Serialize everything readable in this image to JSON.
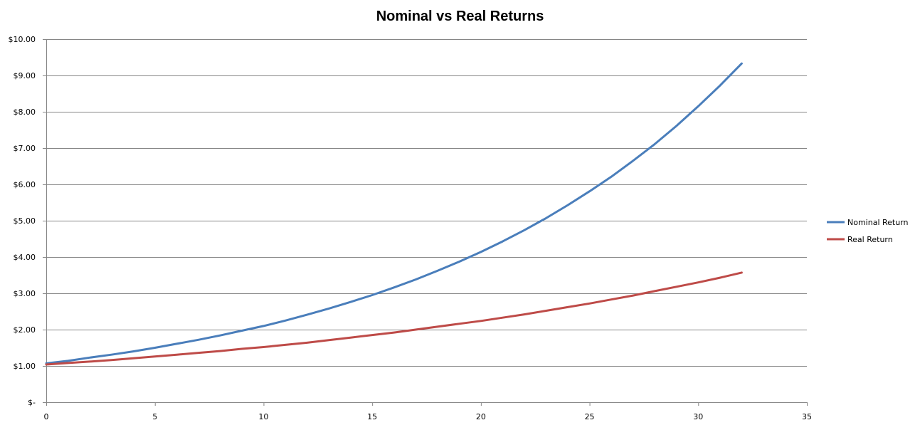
{
  "chart_data": {
    "type": "line",
    "title": "Nominal vs Real Returns",
    "xlabel": "",
    "ylabel": "",
    "xlim": [
      0,
      35
    ],
    "ylim": [
      0,
      10
    ],
    "x_ticks": [
      0,
      5,
      10,
      15,
      20,
      25,
      30,
      35
    ],
    "y_ticks": [
      0,
      1,
      2,
      3,
      4,
      5,
      6,
      7,
      8,
      9,
      10
    ],
    "y_tick_labels": [
      "$-",
      "$1.00",
      "$2.00",
      "$3.00",
      "$4.00",
      "$5.00",
      "$6.00",
      "$7.00",
      "$8.00",
      "$9.00",
      "$10.00"
    ],
    "grid": "horizontal",
    "legend_position": "right",
    "x": [
      0,
      1,
      2,
      3,
      4,
      5,
      6,
      7,
      8,
      9,
      10,
      11,
      12,
      13,
      14,
      15,
      16,
      17,
      18,
      19,
      20,
      21,
      22,
      23,
      24,
      25,
      26,
      27,
      28,
      29,
      30,
      31,
      32
    ],
    "series": [
      {
        "name": "Nominal Return",
        "color": "#4a7ebb",
        "values": [
          1.07,
          1.14,
          1.23,
          1.31,
          1.4,
          1.5,
          1.61,
          1.72,
          1.84,
          1.97,
          2.1,
          2.25,
          2.41,
          2.58,
          2.76,
          2.95,
          3.16,
          3.38,
          3.62,
          3.87,
          4.14,
          4.43,
          4.74,
          5.07,
          5.43,
          5.81,
          6.21,
          6.65,
          7.11,
          7.61,
          8.15,
          8.72,
          9.33
        ]
      },
      {
        "name": "Real Return",
        "color": "#be4b48",
        "values": [
          1.04,
          1.08,
          1.12,
          1.16,
          1.21,
          1.26,
          1.31,
          1.36,
          1.41,
          1.47,
          1.52,
          1.58,
          1.64,
          1.71,
          1.78,
          1.85,
          1.92,
          2.0,
          2.08,
          2.16,
          2.24,
          2.33,
          2.42,
          2.52,
          2.62,
          2.72,
          2.83,
          2.94,
          3.06,
          3.18,
          3.3,
          3.43,
          3.57
        ]
      }
    ]
  }
}
